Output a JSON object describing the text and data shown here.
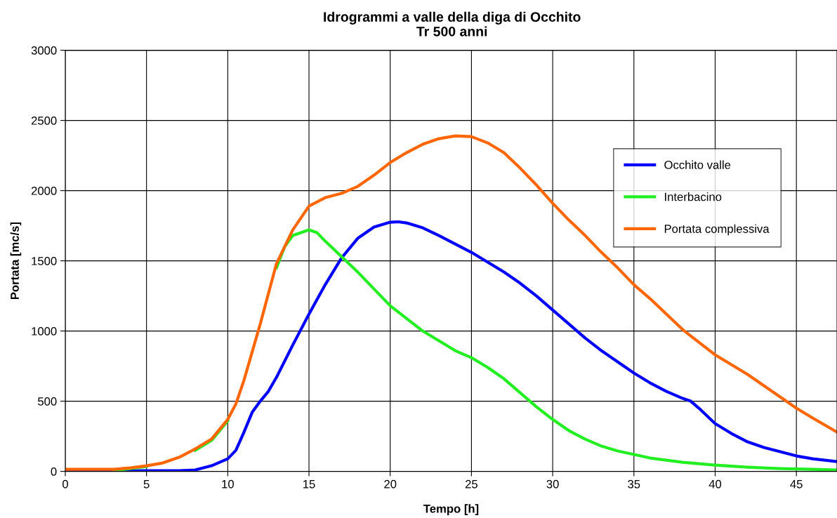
{
  "chart_data": {
    "type": "line",
    "title": "Idrogrammi a valle della diga di Occhito",
    "subtitle": "Tr 500 anni",
    "xlabel": "Tempo [h]",
    "ylabel": "Portata [mc/s]",
    "xlim": [
      0,
      47.5
    ],
    "xticks": [
      0,
      5,
      10,
      15,
      20,
      25,
      30,
      35,
      40,
      45
    ],
    "ylim": [
      0,
      3000
    ],
    "yticks": [
      0,
      500,
      1000,
      1500,
      2000,
      2500,
      3000
    ],
    "grid": true,
    "legend": "right",
    "marker": "none",
    "line_style": "solid",
    "series": [
      {
        "name": "Occhito valle",
        "color": "#0000ff",
        "x": [
          0,
          5,
          7,
          8,
          9,
          10,
          10.5,
          11,
          11.5,
          12,
          12.5,
          13,
          14,
          15,
          16,
          17,
          18,
          19,
          20,
          20.5,
          21,
          22,
          23,
          24,
          25,
          26,
          27,
          28,
          29,
          30,
          31,
          32,
          33,
          34,
          35,
          36,
          37,
          38,
          38.5,
          39,
          40,
          41,
          42,
          43,
          44,
          45,
          46,
          47.5
        ],
        "values": [
          0,
          5,
          5,
          10,
          40,
          90,
          150,
          280,
          420,
          500,
          570,
          670,
          900,
          1120,
          1330,
          1520,
          1660,
          1740,
          1775,
          1778,
          1770,
          1735,
          1680,
          1620,
          1560,
          1490,
          1420,
          1340,
          1250,
          1150,
          1050,
          950,
          860,
          780,
          700,
          630,
          570,
          520,
          500,
          450,
          340,
          270,
          210,
          170,
          140,
          110,
          90,
          70
        ]
      },
      {
        "name": "Interbacino",
        "color": "#22ee22",
        "x": [
          3,
          5,
          7,
          8,
          9,
          10,
          11,
          12,
          13,
          13.5,
          14,
          15,
          15.5,
          16,
          17,
          18,
          19,
          20,
          21,
          22,
          23,
          24,
          25,
          26,
          27,
          28,
          29,
          30,
          31,
          32,
          33,
          34,
          35,
          36,
          37,
          38,
          39,
          40,
          42,
          44,
          46,
          47.5
        ],
        "values": [
          5,
          35,
          null,
          150,
          220,
          360,
          null,
          null,
          1450,
          1600,
          1680,
          1720,
          1700,
          1640,
          1530,
          1420,
          1300,
          1180,
          1090,
          1000,
          930,
          860,
          810,
          740,
          660,
          560,
          460,
          370,
          290,
          230,
          180,
          145,
          120,
          95,
          80,
          65,
          55,
          45,
          30,
          20,
          15,
          10
        ]
      },
      {
        "name": "Portata complessiva",
        "color": "#ff6600",
        "x": [
          0,
          3,
          4,
          5,
          6,
          7,
          8,
          9,
          10,
          10.5,
          11,
          12,
          13,
          14,
          15,
          16,
          17,
          18,
          19,
          20,
          21,
          22,
          23,
          24,
          25,
          26,
          27,
          28,
          29,
          30,
          31,
          32,
          33,
          34,
          35,
          36,
          37,
          38,
          39,
          40,
          41,
          42,
          43,
          44,
          45,
          46,
          47.5
        ],
        "values": [
          15,
          15,
          25,
          40,
          60,
          100,
          160,
          230,
          370,
          480,
          650,
          1050,
          1480,
          1720,
          1890,
          1950,
          1980,
          2030,
          2110,
          2200,
          2270,
          2330,
          2370,
          2390,
          2385,
          2340,
          2270,
          2160,
          2040,
          1910,
          1790,
          1680,
          1560,
          1450,
          1330,
          1230,
          1120,
          1010,
          920,
          830,
          760,
          690,
          610,
          530,
          450,
          380,
          280
        ]
      }
    ]
  }
}
